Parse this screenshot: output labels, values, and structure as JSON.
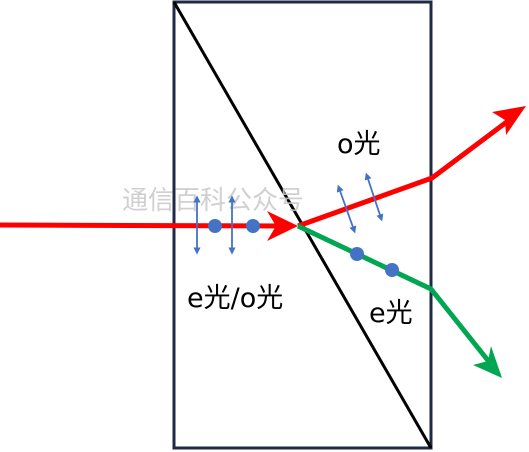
{
  "labels": {
    "o_ray": "o光",
    "e_o_ray": "e光/o光",
    "e_ray": "e光"
  },
  "watermark": "通信百科公众号",
  "colors": {
    "prism_border": "#1f2a44",
    "diagonal": "#000000",
    "incident_ray": "#ff0000",
    "o_ray": "#ff0000",
    "e_ray": "#00a651",
    "polarization": "#4472c4"
  }
}
